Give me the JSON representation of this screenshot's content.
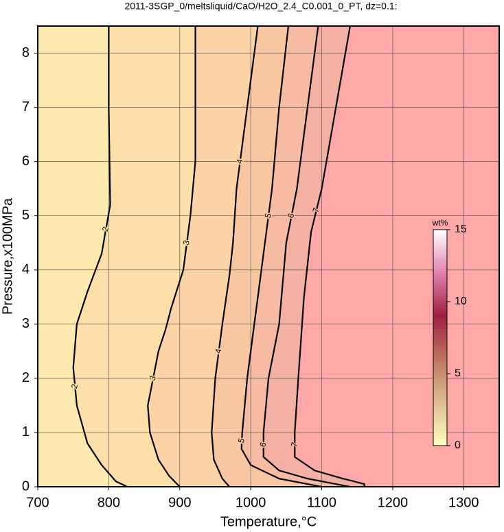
{
  "chart_data": {
    "type": "contour",
    "title": "2011-3SGP_0/meltsliquid/CaO/H2O_2.4_C0.001_0_PT, dz=0.1:",
    "x_label": "Temperature,°C",
    "y_label": "Pressure,x100MPa",
    "xlim": [
      700,
      1350
    ],
    "xticks": [
      700,
      800,
      900,
      1000,
      1100,
      1200,
      1300
    ],
    "ylim": [
      0,
      8.5
    ],
    "yticks": [
      0,
      1,
      2,
      3,
      4,
      5,
      6,
      7,
      8
    ],
    "grid": true,
    "fill_above": "#ffa8a8",
    "contours": [
      {
        "level": 2,
        "color": "#feeaae",
        "x": [
          800,
          800,
          802,
          790,
          770,
          755,
          750,
          755,
          770,
          790,
          810,
          826
        ],
        "y": [
          8.5,
          7,
          5.2,
          4.3,
          3.6,
          3.0,
          2.2,
          1.5,
          0.8,
          0.4,
          0.1,
          0
        ]
      },
      {
        "level": 3,
        "color": "#fddfaa",
        "x": [
          922,
          922,
          915,
          905,
          888,
          880,
          870,
          855,
          858,
          870,
          885,
          900
        ],
        "y": [
          8.5,
          6.0,
          5.0,
          4.0,
          3.3,
          2.9,
          2.5,
          1.5,
          1.0,
          0.5,
          0.2,
          0
        ]
      },
      {
        "level": 4,
        "color": "#fbd3a6",
        "x": [
          1010,
          1000,
          990,
          980,
          975,
          970,
          960,
          950,
          945,
          948,
          960,
          970
        ],
        "y": [
          8.5,
          7.5,
          6.5,
          5.5,
          4.5,
          3.9,
          3.0,
          2.0,
          1.0,
          0.5,
          0.15,
          0
        ]
      },
      {
        "level": 5,
        "color": "#f8c7a2",
        "x": [
          1053,
          1040,
          1030,
          1020,
          1005,
          995,
          988,
          987,
          1000,
          1040,
          1080,
          1100
        ],
        "y": [
          8.5,
          7,
          5.5,
          4.5,
          3.0,
          2.0,
          1.0,
          0.7,
          0.4,
          0.15,
          0.05,
          0
        ]
      },
      {
        "level": 6,
        "color": "#f6bba2",
        "x": [
          1095,
          1080,
          1065,
          1050,
          1040,
          1025,
          1018,
          1018,
          1040,
          1080,
          1120,
          1140
        ],
        "y": [
          8.5,
          7,
          5.5,
          4.5,
          3.0,
          2.0,
          1.0,
          0.55,
          0.3,
          0.15,
          0.05,
          0
        ]
      },
      {
        "level": 7,
        "color": "#f4b0a2",
        "x": [
          1140,
          1120,
          1100,
          1085,
          1075,
          1067,
          1062,
          1062,
          1090,
          1130,
          1160,
          1160
        ],
        "y": [
          8.5,
          7,
          5.5,
          4.7,
          3.5,
          2.0,
          1.0,
          0.55,
          0.3,
          0.15,
          0.05,
          0
        ]
      }
    ],
    "colorbar": {
      "label": "wt%",
      "lim": [
        0,
        15
      ],
      "ticks": [
        0,
        5,
        10,
        15
      ]
    }
  }
}
